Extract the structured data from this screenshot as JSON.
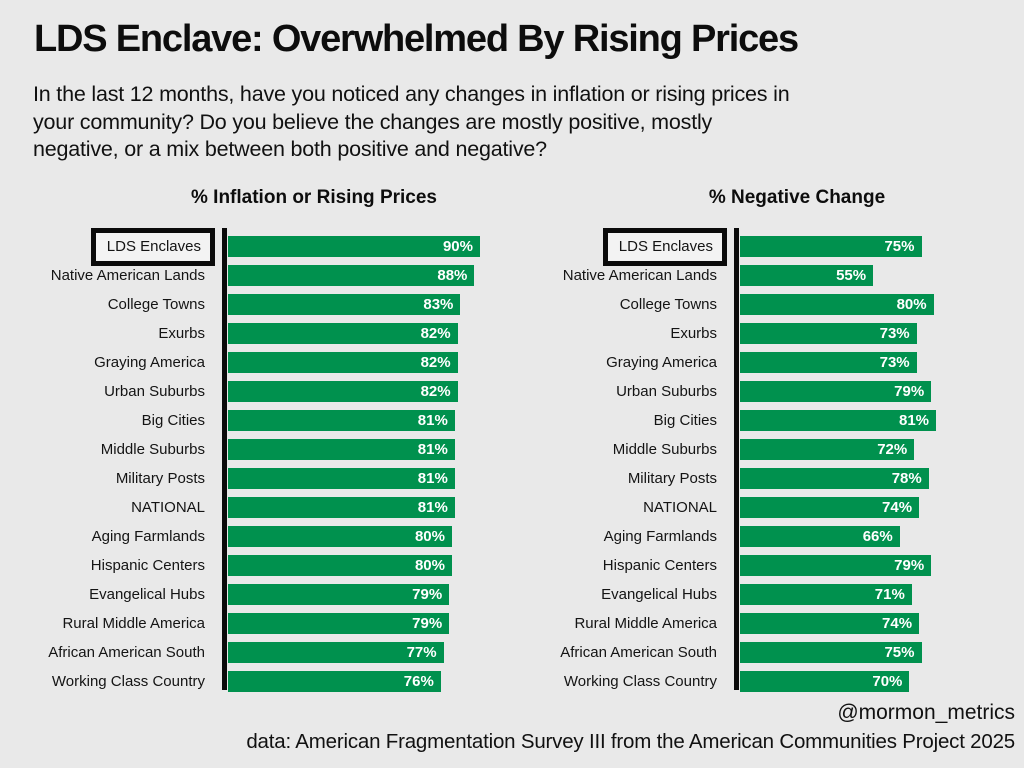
{
  "header": {
    "title": "LDS Enclave: Overwhelmed By Rising Prices",
    "subtitle_lines": [
      "In the last 12 months, have you noticed any changes in inflation or rising prices in",
      "your community? Do you believe the changes are mostly positive, mostly",
      "negative, or a mix between both positive and negative?"
    ]
  },
  "footer": {
    "handle": "@mormon_metrics",
    "source": "data: American Fragmentation Survey III from the American Communities Project 2025"
  },
  "colors": {
    "background": "#e9e9e9",
    "bar_green": "#00914E",
    "bar_value_text": "#ffffff",
    "axis_black": "#0b0b0b",
    "text": "#121212"
  },
  "chart_data": [
    {
      "type": "bar",
      "orientation": "horizontal",
      "title": "% Inflation or Rising Prices",
      "categories": [
        "LDS Enclaves",
        "Native American Lands",
        "College Towns",
        "Exurbs",
        "Graying America",
        "Urban Suburbs",
        "Big Cities",
        "Middle Suburbs",
        "Military Posts",
        "NATIONAL",
        "Aging Farmlands",
        "Hispanic Centers",
        "Evangelical Hubs",
        "Rural Middle America",
        "African American South",
        "Working Class Country"
      ],
      "values": [
        90,
        88,
        83,
        82,
        82,
        82,
        81,
        81,
        81,
        81,
        80,
        80,
        79,
        79,
        77,
        76
      ],
      "value_suffix": "%",
      "xlim": [
        0,
        100
      ],
      "grid": false,
      "legend": false,
      "value_labels": "inside-end",
      "highlighted_category": "LDS Enclaves",
      "bar_color": "#00914E"
    },
    {
      "type": "bar",
      "orientation": "horizontal",
      "title": "% Negative Change",
      "categories": [
        "LDS Enclaves",
        "Native American Lands",
        "College Towns",
        "Exurbs",
        "Graying America",
        "Urban Suburbs",
        "Big Cities",
        "Middle Suburbs",
        "Military Posts",
        "NATIONAL",
        "Aging Farmlands",
        "Hispanic Centers",
        "Evangelical Hubs",
        "Rural Middle America",
        "African American South",
        "Working Class Country"
      ],
      "values": [
        75,
        55,
        80,
        73,
        73,
        79,
        81,
        72,
        78,
        74,
        66,
        79,
        71,
        74,
        75,
        70
      ],
      "value_suffix": "%",
      "xlim": [
        0,
        100
      ],
      "grid": false,
      "legend": false,
      "value_labels": "inside-end",
      "highlighted_category": "LDS Enclaves",
      "bar_color": "#00914E"
    }
  ]
}
